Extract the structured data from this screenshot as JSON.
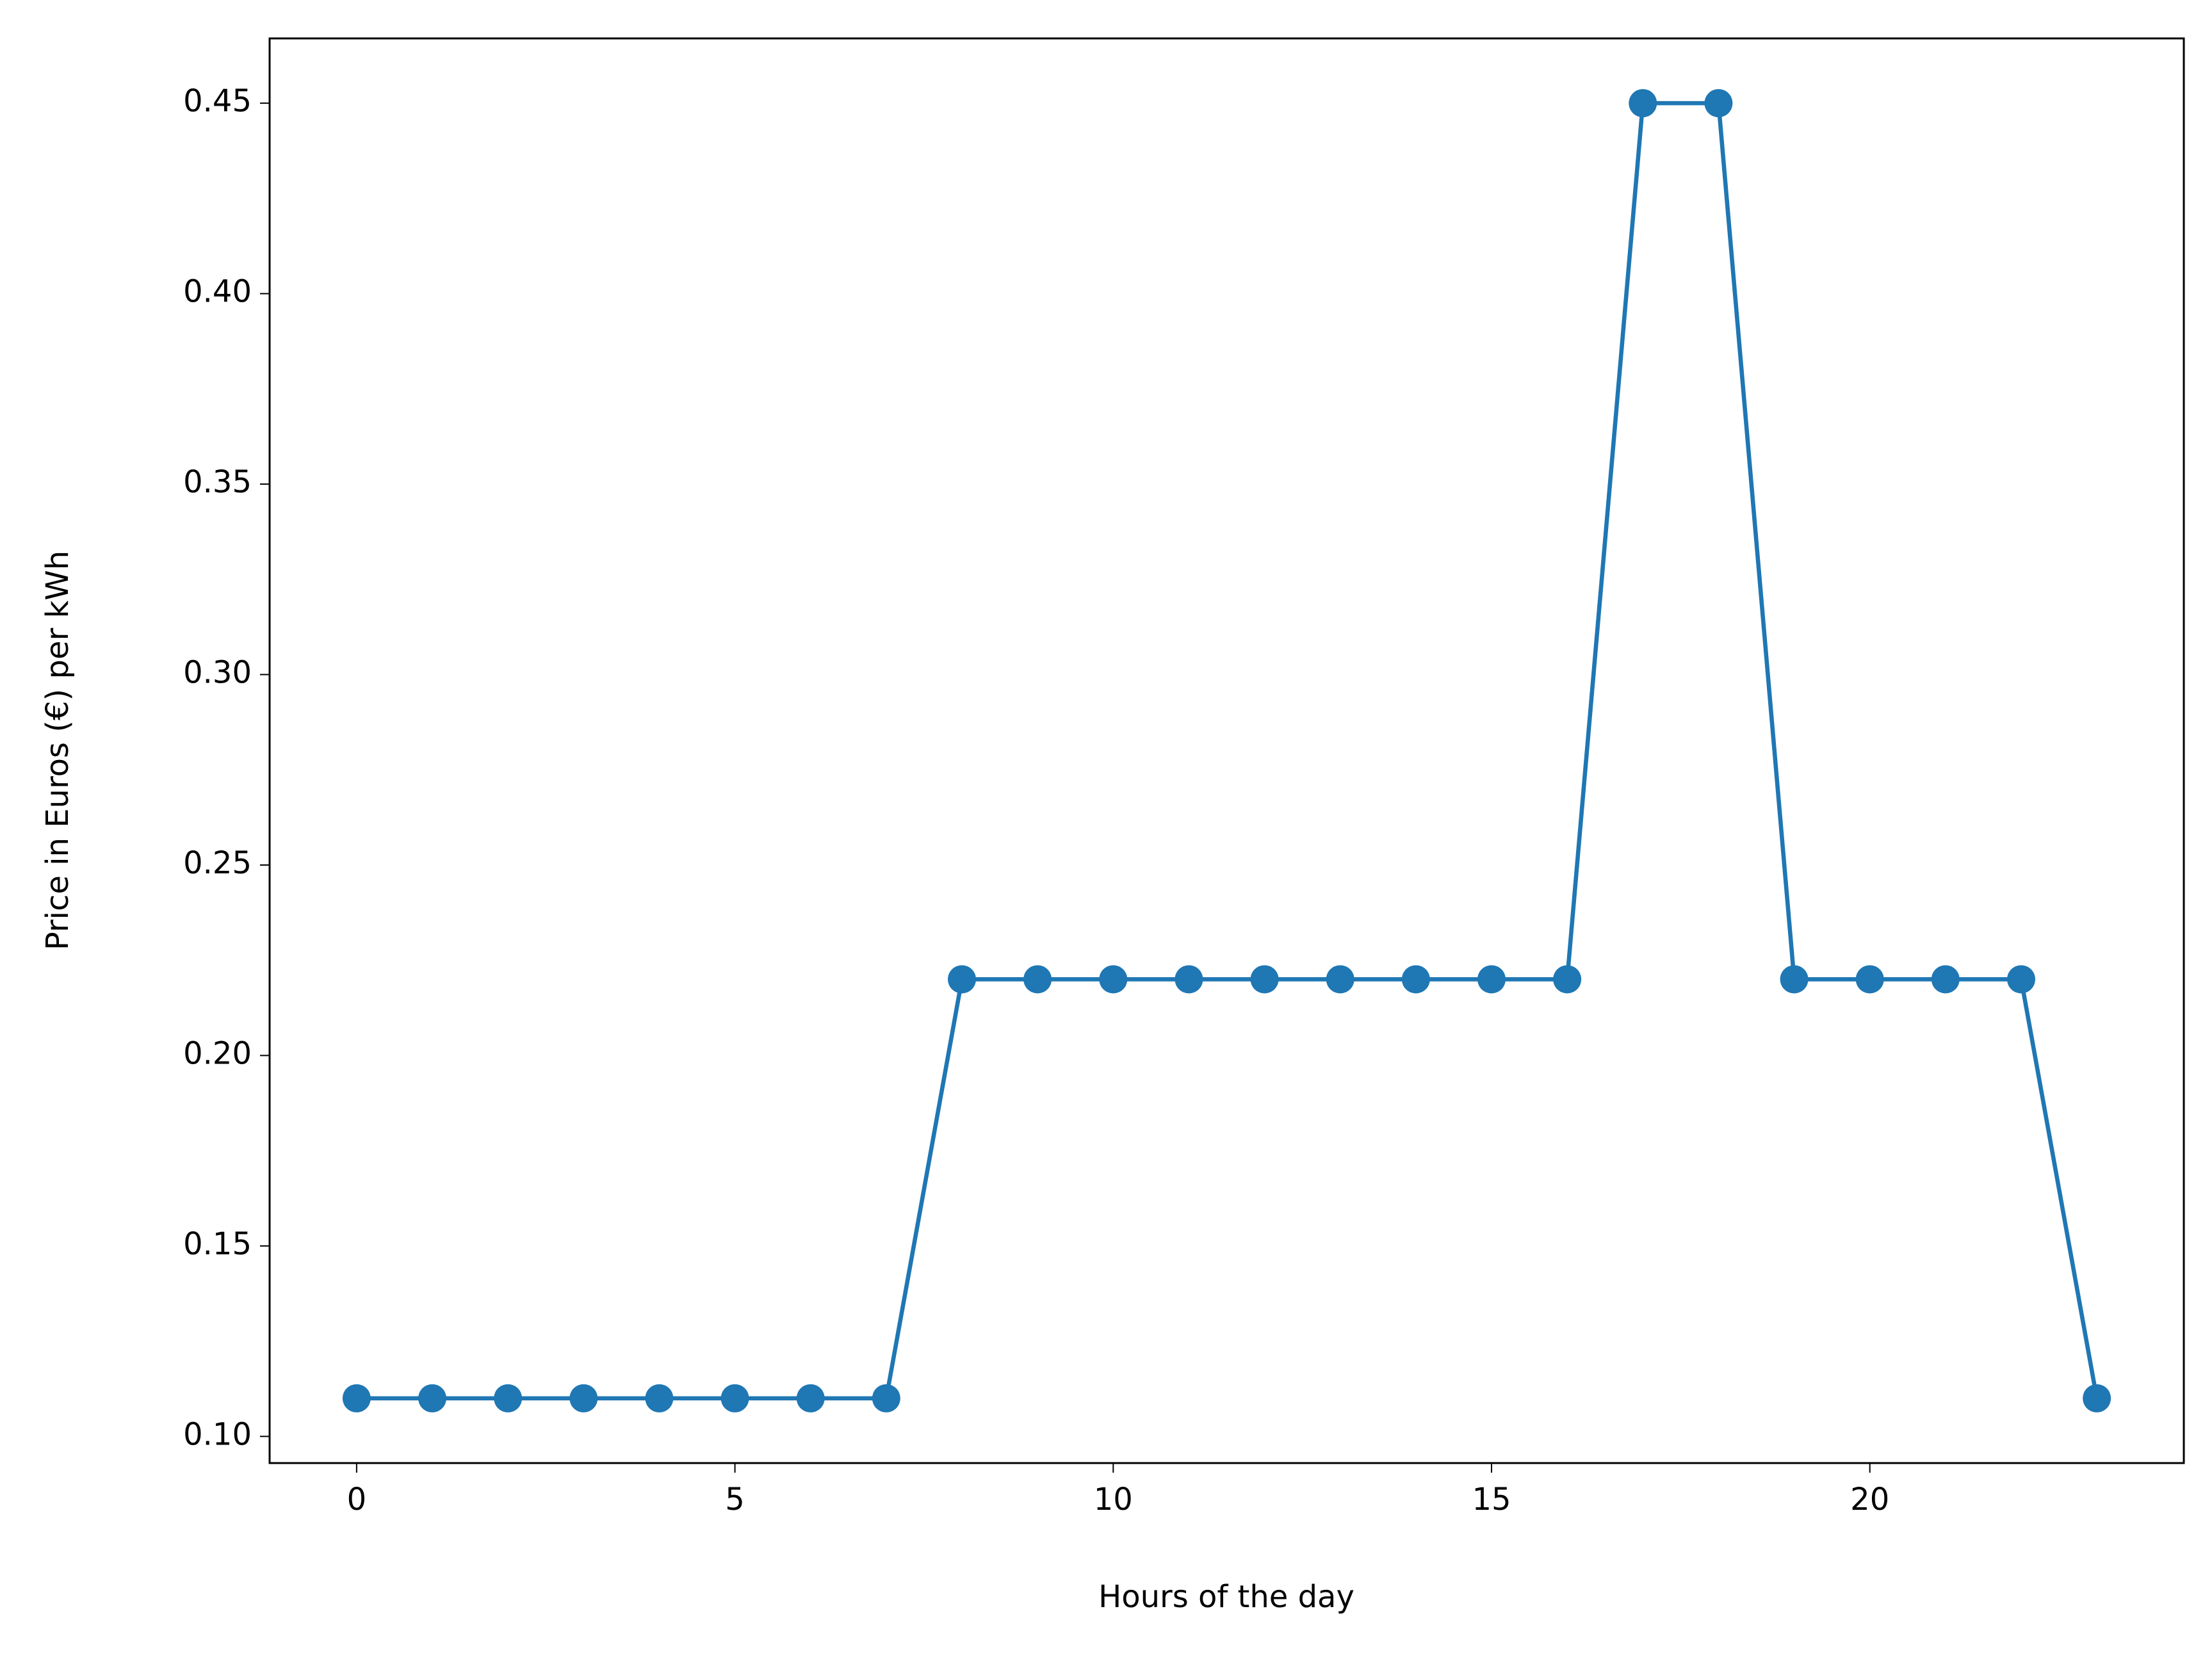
{
  "chart_data": {
    "type": "line",
    "xlabel": "Hours of the day",
    "ylabel": "Price in Euros (€) per kWh",
    "x": [
      0,
      1,
      2,
      3,
      4,
      5,
      6,
      7,
      8,
      9,
      10,
      11,
      12,
      13,
      14,
      15,
      16,
      17,
      18,
      19,
      20,
      21,
      22,
      23
    ],
    "series": [
      {
        "color": "#1f77b4",
        "values": [
          0.11,
          0.11,
          0.11,
          0.11,
          0.11,
          0.11,
          0.11,
          0.11,
          0.22,
          0.22,
          0.22,
          0.22,
          0.22,
          0.22,
          0.22,
          0.22,
          0.22,
          0.45,
          0.45,
          0.22,
          0.22,
          0.22,
          0.22,
          0.11
        ]
      }
    ],
    "xlim": [
      -1.15,
      24.15
    ],
    "xticks": [
      0,
      5,
      10,
      15,
      20
    ],
    "ylim": [
      0.093,
      0.467
    ],
    "yticks": [
      {
        "value": 0.1,
        "label": "0.10"
      },
      0.15,
      {
        "value": 0.2,
        "label": "0.20"
      },
      0.25,
      {
        "value": 0.3,
        "label": "0.30"
      },
      0.35,
      {
        "value": 0.4,
        "label": "0.40"
      },
      0.45
    ],
    "grid": false,
    "markers": true
  }
}
